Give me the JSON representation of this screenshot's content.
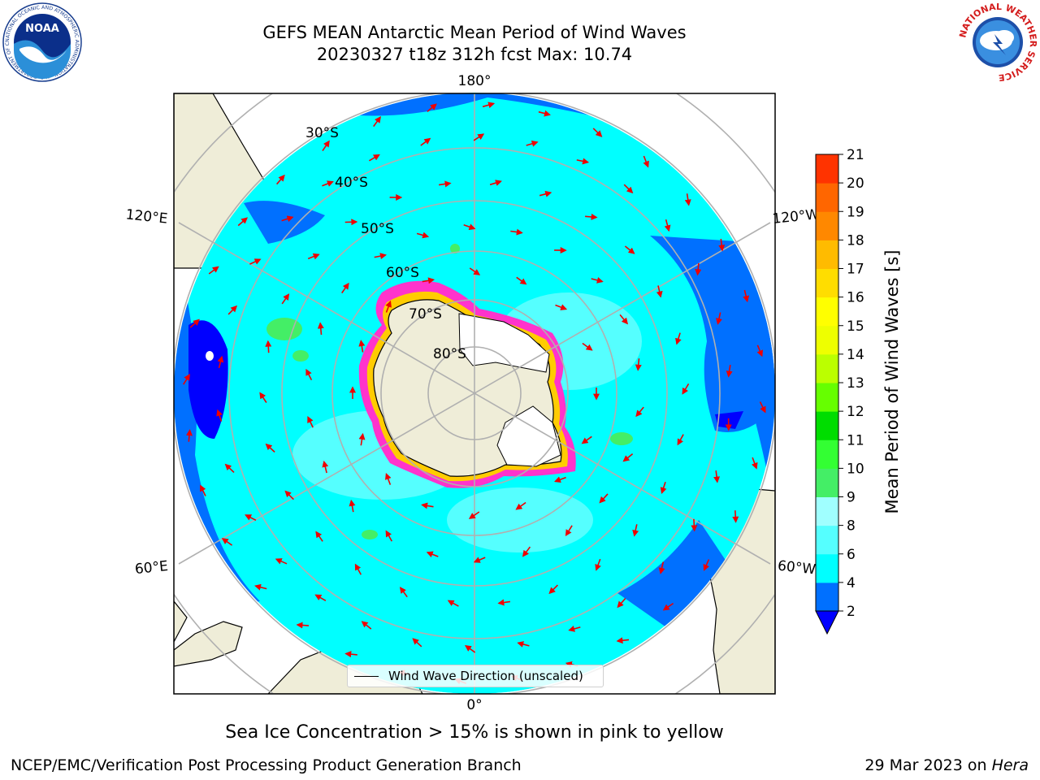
{
  "title": {
    "line1": "GEFS MEAN Antarctic Mean Period of Wind Waves",
    "line2": "20230327 t18z 312h fcst   Max: 10.74"
  },
  "map": {
    "projection": "south polar stereographic",
    "longitude_labels": [
      "180°",
      "120°E",
      "120°W",
      "60°E",
      "60°W",
      "0°"
    ],
    "latitude_labels": [
      "30°S",
      "40°S",
      "50°S",
      "60°S",
      "70°S",
      "80°S"
    ],
    "colors": {
      "ocean_4_6": "#00ffff",
      "ocean_2_4": "#0070ff",
      "ocean_lt_2": "#0000ff",
      "ocean_6_8": "#55ffff",
      "ocean_9_10": "#44ee66",
      "land": "#efedd8",
      "antarctic_ice": "#ffffff",
      "sea_ice_edge_pink": "#ff33cc",
      "sea_ice_edge_yellow": "#ffcc00",
      "arrows": "#ee0000",
      "gridlines": "#b0b0b0"
    }
  },
  "legend": {
    "label": "Wind Wave Direction (unscaled)"
  },
  "colorbar": {
    "label": "Mean Period of Wind Waves [s]",
    "ticks": [
      "2",
      "4",
      "6",
      "8",
      "9",
      "10",
      "11",
      "12",
      "13",
      "14",
      "15",
      "16",
      "17",
      "18",
      "19",
      "20",
      "21"
    ],
    "colors": [
      "#0070ff",
      "#00ffff",
      "#55ffff",
      "#a0ffff",
      "#44ee66",
      "#33ff33",
      "#00dd00",
      "#66ff00",
      "#bbff00",
      "#eeff00",
      "#ffff00",
      "#ffdd00",
      "#ffbb00",
      "#ff8800",
      "#ff6600",
      "#ff3300",
      "#ff0000"
    ],
    "extend_color": "#0000ff"
  },
  "caption": "Sea Ice Concentration > 15% is shown in pink to yellow",
  "footer": {
    "credit": "NCEP/EMC/Verification Post Processing Product Generation Branch",
    "date": "29 Mar 2023 on ",
    "host": "Hera"
  },
  "logos": {
    "noaa_text": "NOAA",
    "noaa_ring": "NATIONAL OCEANIC AND ATMOSPHERIC ADMINISTRATION · U.S. DEPARTMENT OF COMMERCE",
    "nws_ring": "NATIONAL WEATHER SERVICE"
  }
}
